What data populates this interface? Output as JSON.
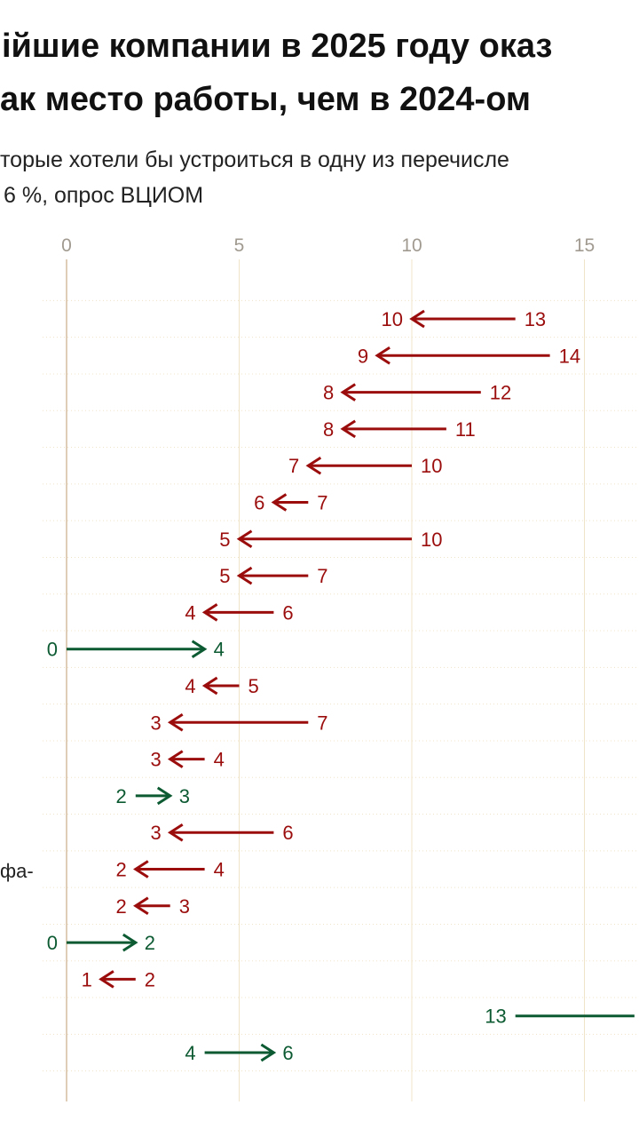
{
  "title": {
    "line1": "ійшие компании в 2025 году оказ",
    "line2": "ак место работы, чем в 2024-ом"
  },
  "subtitle": {
    "line1": "торые хотели бы устроиться в одну из перечисле",
    "line2": "6 %, опрос ВЦИОМ"
  },
  "row_label_fragment": "фа-",
  "colors": {
    "decrease": "#9b0d0d",
    "increase": "#0c5a32",
    "grid": "#f0e4c8",
    "zero_line": "#e0cdb8",
    "tick_text": "#a09a90"
  },
  "chart_data": {
    "type": "arrow_dumbbell",
    "x_ticks": [
      0,
      5,
      10,
      15
    ],
    "xlim": [
      0,
      16.5
    ],
    "grid": true,
    "series": [
      {
        "name": "2024",
        "values": [
          13,
          14,
          12,
          11,
          10,
          7,
          10,
          7,
          6,
          0,
          5,
          7,
          4,
          2,
          6,
          4,
          3,
          0,
          2,
          13,
          4
        ]
      },
      {
        "name": "2025",
        "values": [
          10,
          9,
          8,
          8,
          7,
          6,
          5,
          5,
          4,
          4,
          4,
          3,
          3,
          3,
          3,
          2,
          2,
          2,
          1,
          16.5,
          6
        ]
      }
    ],
    "end_labels": [
      "10",
      "9",
      "8",
      "8",
      "7",
      "6",
      "5",
      "5",
      "4",
      "4",
      "4",
      "3",
      "3",
      "3",
      "3",
      "2",
      "2",
      "2",
      "1",
      "",
      "6"
    ],
    "start_labels": [
      "13",
      "14",
      "12",
      "11",
      "10",
      "7",
      "10",
      "7",
      "6",
      "0",
      "5",
      "7",
      "4",
      "2",
      "6",
      "4",
      "3",
      "0",
      "2",
      "13",
      "4"
    ]
  }
}
